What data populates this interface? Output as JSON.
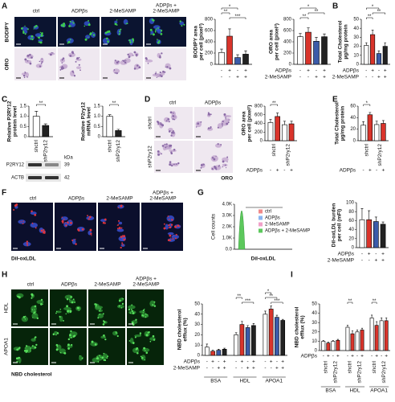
{
  "figure": {
    "panel_letters": [
      "A",
      "B",
      "C",
      "D",
      "E",
      "F",
      "G",
      "H",
      "I"
    ],
    "A_images": {
      "columns": [
        [
          "ctrl"
        ],
        [
          "ADPβs"
        ],
        [
          "2-MeSAMP"
        ],
        [
          "ADPβs +",
          "2-MeSAMP"
        ]
      ],
      "rows": [
        "BODIPY",
        "ORO"
      ]
    },
    "C_blot": {
      "unit": "kDa",
      "bands": [
        {
          "name": "P2RY12",
          "size": "39"
        },
        {
          "name": "ACTB",
          "size": "42"
        }
      ]
    },
    "D_images": {
      "columns": [
        "ctrl",
        "ADPβs"
      ],
      "rows": [
        "shctrl",
        "shP2ry12"
      ],
      "stain": "ORO"
    },
    "F_images": {
      "columns": [
        [
          "ctrl"
        ],
        [
          "ADPβs"
        ],
        [
          "2-MeSAMP"
        ],
        [
          "ADPβs +",
          "2-MeSAMP"
        ]
      ],
      "stain": "DiI-oxLDL"
    },
    "G_flow": {
      "y_label": "Cell counts",
      "x_label": "DiI-oxLDL",
      "y_tick_labels": [
        "4.0K",
        "3.0K",
        "2.0K",
        "1.0K",
        "0.0"
      ],
      "legend": [
        {
          "name": "ctrl",
          "color": "#f08a8a"
        },
        {
          "name": "ADPβs",
          "color": "#8ab4f0"
        },
        {
          "name": "2-MeSAMP",
          "color": "#f0a0c8"
        },
        {
          "name": "ADPβs + 2-MeSAMP",
          "color": "#5cc85c"
        }
      ]
    },
    "H_images": {
      "columns": [
        [
          "ctrl"
        ],
        [
          "ADPβs"
        ],
        [
          "2-MeSAMP"
        ],
        [
          "ADPβs +",
          "2-MeSAMP"
        ]
      ],
      "rows": [
        "HDL",
        "APOA1"
      ],
      "stain": "NBD cholesterol"
    }
  },
  "chart_data": [
    {
      "type": "bar",
      "ylabel": [
        "BODIPY area",
        "per cell (pixel²)"
      ],
      "ylim": [
        0,
        800
      ],
      "yticks": [
        0,
        200,
        400,
        600,
        800
      ],
      "values": [
        210,
        500,
        120,
        180
      ],
      "errors": [
        60,
        130,
        50,
        60
      ],
      "colors": [
        "#ffffff",
        "#d9342b",
        "#3b5ba9",
        "#222222"
      ],
      "rows": [
        {
          "signs": [
            "-",
            "+",
            "-",
            "+"
          ]
        },
        {
          "signs": [
            "-",
            "-",
            "+",
            "+"
          ]
        }
      ],
      "significance": [
        "*",
        "**",
        "***"
      ]
    },
    {
      "type": "bar",
      "ylabel": [
        "ORO area",
        "per cell (pixel²)"
      ],
      "ylim": [
        0,
        800
      ],
      "yticks": [
        0,
        200,
        400,
        600,
        800
      ],
      "values": [
        490,
        570,
        410,
        490
      ],
      "errors": [
        60,
        80,
        70,
        50
      ],
      "colors": [
        "#ffffff",
        "#d9342b",
        "#3b5ba9",
        "#222222"
      ],
      "rows": [
        {
          "name": "ADPβs",
          "signs": [
            "-",
            "+",
            "-",
            "+"
          ]
        },
        {
          "name": "2-MeSAMP",
          "signs": [
            "-",
            "-",
            "+",
            "+"
          ]
        }
      ],
      "significance": [
        "*",
        "**",
        "**"
      ]
    },
    {
      "type": "bar",
      "ylabel": [
        "Total Cholesterol",
        "µg/mg protein"
      ],
      "ylim": [
        0,
        50
      ],
      "yticks": [
        0,
        10,
        20,
        30,
        40,
        50
      ],
      "values": [
        21,
        33,
        12,
        20
      ],
      "errors": [
        3,
        5,
        3,
        4
      ],
      "colors": [
        "#ffffff",
        "#d9342b",
        "#3b5ba9",
        "#222222"
      ],
      "rows": [
        {
          "name": "ADPβs",
          "signs": [
            "-",
            "+",
            "-",
            "+"
          ]
        },
        {
          "name": "2-MeSAMP",
          "signs": [
            "-",
            "-",
            "+",
            "+"
          ]
        }
      ],
      "significance": [
        "*",
        "**",
        "**"
      ]
    },
    {
      "type": "bar",
      "ylabel": [
        "Relative P2RY12",
        "protein level"
      ],
      "ylim": [
        0,
        1.5
      ],
      "yticks": [
        0,
        0.5,
        {
          "value": 1,
          "label": "1.0"
        },
        1.5
      ],
      "categories": [
        "shctrl",
        "shP2ry12"
      ],
      "values": [
        1.0,
        0.55
      ],
      "errors": [
        0.25,
        0.08
      ],
      "colors": [
        "#ffffff",
        "#222222"
      ],
      "significance": [
        "**"
      ]
    },
    {
      "type": "bar",
      "ylabel": [
        "Relative P2ry12",
        "mRNA level"
      ],
      "ylim": [
        0,
        1.5
      ],
      "yticks": [
        0,
        0.5,
        {
          "value": 1,
          "label": "1.0"
        },
        1.5
      ],
      "categories": [
        "shctrl",
        "shP2ry12"
      ],
      "values": [
        1.0,
        0.3
      ],
      "errors": [
        0.08,
        0.06
      ],
      "colors": [
        "#ffffff",
        "#222222"
      ],
      "significance": [
        "**"
      ]
    },
    {
      "type": "bar",
      "ylabel": [
        "ORO area",
        "per cell (pixel²)"
      ],
      "ylim": [
        0,
        800
      ],
      "yticks": [
        0,
        200,
        400,
        600,
        800
      ],
      "values": [
        420,
        560,
        370,
        390
      ],
      "errors": [
        70,
        80,
        80,
        60
      ],
      "colors": [
        "#ffffff",
        "#d9342b"
      ],
      "pair_labels": [
        "shctrl",
        "shP2ry12"
      ],
      "rows": [
        {
          "name": "ADPβs",
          "signs": [
            "-",
            "+",
            "-",
            "+"
          ]
        }
      ],
      "significance": [
        "**"
      ]
    },
    {
      "type": "bar",
      "ylabel": [
        "Total Cholesterol",
        "µg/mg protein"
      ],
      "ylim": [
        0,
        60
      ],
      "yticks": [
        0,
        20,
        40,
        60
      ],
      "values": [
        27,
        45,
        28,
        30
      ],
      "errors": [
        6,
        4,
        6,
        5
      ],
      "colors": [
        "#ffffff",
        "#d9342b"
      ],
      "pair_labels": [
        "shctrl",
        "shP2ry12"
      ],
      "rows": [
        {
          "name": "ADPβs",
          "signs": [
            "-",
            "+",
            "-",
            "+"
          ]
        }
      ],
      "significance": [
        "*"
      ]
    },
    {
      "type": "bar",
      "ylabel": [
        "DiI-oxLDL burden",
        "per cell (mFI)"
      ],
      "ylim": [
        0,
        100
      ],
      "yticks": [
        0,
        20,
        40,
        60,
        80,
        100
      ],
      "values": [
        62,
        62,
        58,
        52
      ],
      "errors": [
        25,
        20,
        10,
        5
      ],
      "colors": [
        "#ffffff",
        "#d9342b",
        "#3b5ba9",
        "#222222"
      ],
      "rows": [
        {
          "name": "ADPβs",
          "signs": [
            "-",
            "+",
            "-",
            "+"
          ]
        },
        {
          "name": "2-MeSAMP",
          "signs": [
            "-",
            "-",
            "+",
            "+"
          ]
        }
      ]
    },
    {
      "type": "bar",
      "ylabel": [
        "NBD cholesterol",
        "efflux (%)"
      ],
      "ylim": [
        0,
        50
      ],
      "yticks": [
        0,
        10,
        20,
        30,
        40,
        50
      ],
      "group_labels": [
        "BSA",
        "HDL",
        "APOA1"
      ],
      "values": [
        [
          8,
          4,
          5,
          6
        ],
        [
          20,
          30,
          27,
          29
        ],
        [
          40,
          45,
          37,
          34
        ]
      ],
      "errors": [
        [
          3,
          1,
          1,
          1
        ],
        [
          2,
          3,
          2,
          2
        ],
        [
          3,
          3,
          2,
          1
        ]
      ],
      "colors": [
        "#ffffff",
        "#d9342b",
        "#3b5ba9",
        "#222222"
      ],
      "rows": [
        {
          "name": "ADPβs",
          "signs": [
            "-",
            "+",
            "-",
            "+",
            "-",
            "+",
            "-",
            "+",
            "-",
            "+",
            "-",
            "+"
          ]
        },
        {
          "name": "2-MeSAMP",
          "signs": [
            "-",
            "-",
            "+",
            "+",
            "-",
            "-",
            "+",
            "+",
            "-",
            "-",
            "+",
            "+"
          ]
        }
      ],
      "significance": [
        "**",
        "***",
        "*",
        "**",
        "***"
      ]
    },
    {
      "type": "bar",
      "ylabel": [
        "NBD cholesterol",
        "efflux (%)"
      ],
      "ylim": [
        0,
        50
      ],
      "yticks": [
        0,
        10,
        20,
        30,
        40,
        50
      ],
      "group_labels": [
        "BSA",
        "HDL",
        "APOA1"
      ],
      "values": [
        [
          10,
          8,
          10,
          11
        ],
        [
          25,
          18,
          20,
          22
        ],
        [
          35,
          27,
          32,
          32
        ]
      ],
      "errors": [
        [
          1,
          1,
          1,
          1
        ],
        [
          2,
          3,
          2,
          2
        ],
        [
          3,
          4,
          3,
          3
        ]
      ],
      "colors": [
        "#ffffff",
        "#d9342b"
      ],
      "pair_labels": [
        "shctrl",
        "shP2ry12",
        "shctrl",
        "shP2ry12",
        "shctrl",
        "shP2ry12"
      ],
      "rows": [
        {
          "name": "ADPβs",
          "signs": [
            "-",
            "+",
            "-",
            "+",
            "-",
            "+",
            "-",
            "+",
            "-",
            "+",
            "-",
            "+"
          ]
        }
      ],
      "significance": [
        "**",
        "**"
      ]
    }
  ]
}
